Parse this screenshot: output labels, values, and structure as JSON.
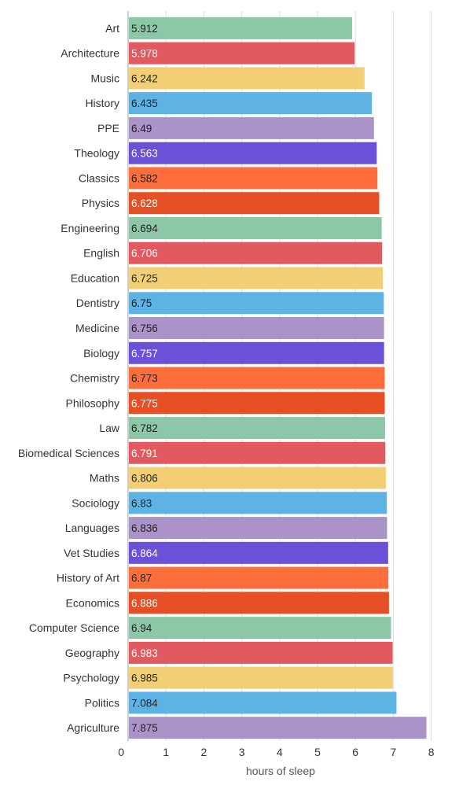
{
  "chart_data": {
    "type": "bar",
    "orientation": "horizontal",
    "categories": [
      "Art",
      "Architecture",
      "Music",
      "History",
      "PPE",
      "Theology",
      "Classics",
      "Physics",
      "Engineering",
      "English",
      "Education",
      "Dentistry",
      "Medicine",
      "Biology",
      "Chemistry",
      "Philosophy",
      "Law",
      "Biomedical Sciences",
      "Maths",
      "Sociology",
      "Languages",
      "Vet Studies",
      "History of Art",
      "Economics",
      "Computer Science",
      "Geography",
      "Psychology",
      "Politics",
      "Agriculture"
    ],
    "values": [
      5.912,
      5.978,
      6.242,
      6.435,
      6.49,
      6.563,
      6.582,
      6.628,
      6.694,
      6.706,
      6.725,
      6.75,
      6.756,
      6.757,
      6.773,
      6.775,
      6.782,
      6.791,
      6.806,
      6.83,
      6.836,
      6.864,
      6.87,
      6.886,
      6.94,
      6.983,
      6.985,
      7.084,
      7.875
    ],
    "value_labels": [
      "5.912",
      "5.978",
      "6.242",
      "6.435",
      "6.49",
      "6.563",
      "6.582",
      "6.628",
      "6.694",
      "6.706",
      "6.725",
      "6.75",
      "6.756",
      "6.757",
      "6.773",
      "6.775",
      "6.782",
      "6.791",
      "6.806",
      "6.83",
      "6.836",
      "6.864",
      "6.87",
      "6.886",
      "6.94",
      "6.983",
      "6.985",
      "7.084",
      "7.875"
    ],
    "xlabel": "hours of sleep",
    "ylabel": "",
    "title": "",
    "xlim": [
      0,
      8
    ],
    "x_ticks": [
      "0",
      "1",
      "2",
      "3",
      "4",
      "5",
      "6",
      "7",
      "8"
    ],
    "grid": true,
    "palette": [
      "#8cc7a7",
      "#e05a5f",
      "#f2cf74",
      "#5db4e4",
      "#aa93c9",
      "#6a51d8",
      "#fd6e3a",
      "#e54f23"
    ],
    "label_text_colors": [
      "#222222",
      "#ffffff",
      "#222222",
      "#222222",
      "#222222",
      "#ffffff",
      "#222222",
      "#ffffff"
    ]
  }
}
